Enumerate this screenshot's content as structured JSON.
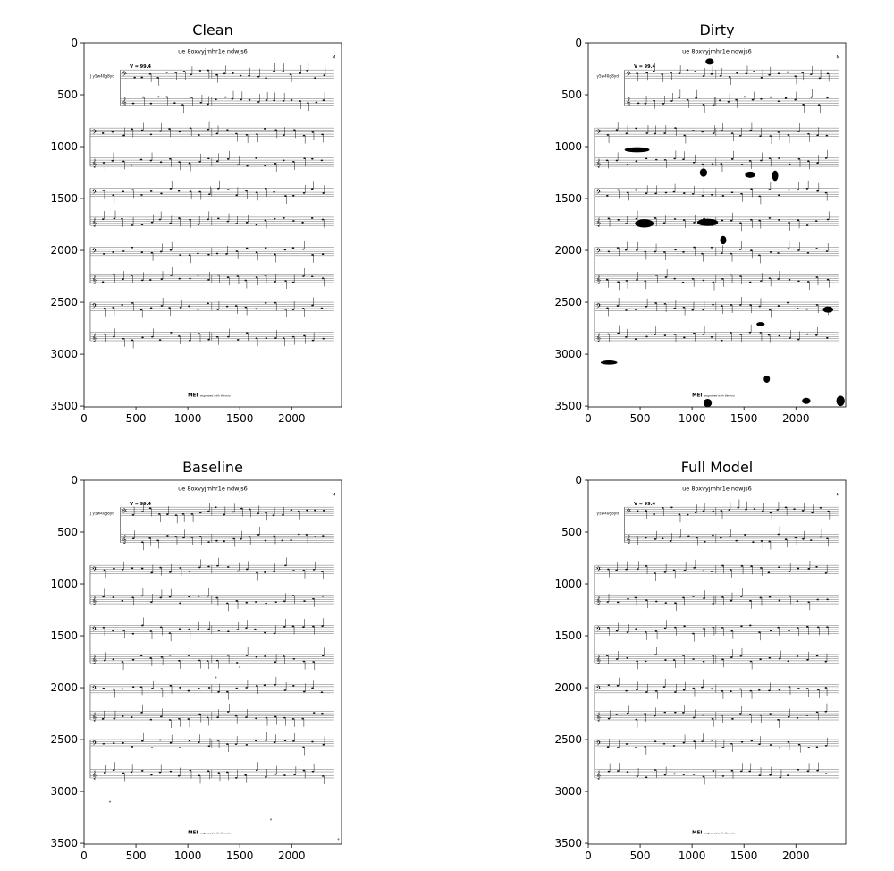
{
  "figure": {
    "panels": [
      {
        "title": "Clean",
        "variant": "clean",
        "sheet": {
          "title": "ue 8oxvyjmhr1e ndwjs6",
          "part_label": "J y5w40g8yd",
          "tempo": "V = 99.4",
          "page_number": "M",
          "footer_logo": "MEI",
          "footer_credit": "engraved with Verovio"
        }
      },
      {
        "title": "Dirty",
        "variant": "dirty",
        "sheet": {
          "title": "ue 8oxvyjmhr1e ndwjs6",
          "part_label": "J y5w40g8yd",
          "tempo": "V = 99.4",
          "page_number": "M",
          "footer_logo": "MEI",
          "footer_credit": "engraved with Verovio"
        }
      },
      {
        "title": "Baseline",
        "variant": "baseline",
        "sheet": {
          "title": "ue 8oxvyjmhr1e ndwjs6",
          "part_label": "J y5w40g8yd",
          "tempo": "V = 99.4",
          "page_number": "M",
          "footer_logo": "MEI",
          "footer_credit": "engraved with Verovio"
        }
      },
      {
        "title": "Full Model",
        "variant": "full",
        "sheet": {
          "title": "ue 8oxvyjmhr1e ndwjs6",
          "part_label": "J y5w40g8yd",
          "tempo": "V = 99.4",
          "page_number": "M",
          "footer_logo": "MEI",
          "footer_credit": "engraved with Verovio"
        }
      }
    ]
  },
  "chart_data": [
    {
      "type": "image",
      "title": "Clean",
      "xlim": [
        0,
        2480
      ],
      "ylim": [
        3508,
        0
      ],
      "x_ticks": [
        0,
        500,
        1000,
        1500,
        2000
      ],
      "y_ticks": [
        0,
        500,
        1000,
        1500,
        2000,
        2500,
        3000,
        3500
      ],
      "x_tick_labels": [
        "0",
        "500",
        "1000",
        "1500",
        "2000"
      ],
      "y_tick_labels": [
        "0",
        "500",
        "1000",
        "1500",
        "2000",
        "2500",
        "3000",
        "3500"
      ]
    },
    {
      "type": "image",
      "title": "Dirty",
      "xlim": [
        0,
        2480
      ],
      "ylim": [
        3508,
        0
      ],
      "x_ticks": [
        0,
        500,
        1000,
        1500,
        2000
      ],
      "y_ticks": [
        0,
        500,
        1000,
        1500,
        2000,
        2500,
        3000,
        3500
      ],
      "x_tick_labels": [
        "0",
        "500",
        "1000",
        "1500",
        "2000"
      ],
      "y_tick_labels": [
        "0",
        "500",
        "1000",
        "1500",
        "2000",
        "2500",
        "3000",
        "3500"
      ]
    },
    {
      "type": "image",
      "title": "Baseline",
      "xlim": [
        0,
        2480
      ],
      "ylim": [
        3508,
        0
      ],
      "x_ticks": [
        0,
        500,
        1000,
        1500,
        2000
      ],
      "y_ticks": [
        0,
        500,
        1000,
        1500,
        2000,
        2500,
        3000,
        3500
      ],
      "x_tick_labels": [
        "0",
        "500",
        "1000",
        "1500",
        "2000"
      ],
      "y_tick_labels": [
        "0",
        "500",
        "1000",
        "1500",
        "2000",
        "2500",
        "3000",
        "3500"
      ]
    },
    {
      "type": "image",
      "title": "Full Model",
      "xlim": [
        0,
        2480
      ],
      "ylim": [
        3508,
        0
      ],
      "x_ticks": [
        0,
        500,
        1000,
        1500,
        2000
      ],
      "y_ticks": [
        0,
        500,
        1000,
        1500,
        2000,
        2500,
        3000,
        3500
      ],
      "x_tick_labels": [
        "0",
        "500",
        "1000",
        "1500",
        "2000"
      ],
      "y_tick_labels": [
        "0",
        "500",
        "1000",
        "1500",
        "2000",
        "2500",
        "3000",
        "3500"
      ]
    }
  ]
}
